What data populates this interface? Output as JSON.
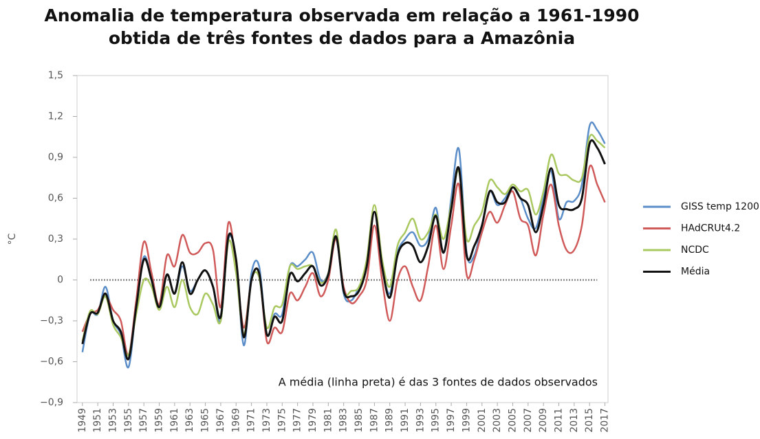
{
  "chart_data": {
    "type": "line",
    "title": "Anomalia de temperatura observada em relação a 1961-1990",
    "subtitle": "obtida de três fontes de dados para a Amazônia",
    "y_label": "°C",
    "annotation": "A média (linha preta) é das 3 fontes de dados observados",
    "x": [
      1949,
      1950,
      1951,
      1952,
      1953,
      1954,
      1955,
      1956,
      1957,
      1958,
      1959,
      1960,
      1961,
      1962,
      1963,
      1964,
      1965,
      1966,
      1967,
      1968,
      1969,
      1970,
      1971,
      1972,
      1973,
      1974,
      1975,
      1976,
      1977,
      1978,
      1979,
      1980,
      1981,
      1982,
      1983,
      1984,
      1985,
      1986,
      1987,
      1988,
      1989,
      1990,
      1991,
      1992,
      1993,
      1994,
      1995,
      1996,
      1997,
      1998,
      1999,
      2000,
      2001,
      2002,
      2003,
      2004,
      2005,
      2006,
      2007,
      2008,
      2009,
      2010,
      2011,
      2012,
      2013,
      2014,
      2015,
      2016,
      2017
    ],
    "series": [
      {
        "name": "GISS temp 1200",
        "color": "#5b8ec9",
        "values": [
          -0.53,
          -0.25,
          -0.25,
          -0.05,
          -0.3,
          -0.4,
          -0.64,
          -0.2,
          0.17,
          0.0,
          -0.2,
          0.04,
          -0.1,
          0.1,
          -0.08,
          0.0,
          0.07,
          -0.05,
          -0.3,
          0.3,
          0.15,
          -0.48,
          0.05,
          0.1,
          -0.4,
          -0.25,
          -0.25,
          0.1,
          0.1,
          0.15,
          0.2,
          0.0,
          0.05,
          0.32,
          -0.1,
          -0.15,
          -0.05,
          0.1,
          0.5,
          0.1,
          -0.1,
          0.2,
          0.3,
          0.35,
          0.25,
          0.3,
          0.53,
          0.2,
          0.6,
          0.96,
          0.2,
          0.18,
          0.4,
          0.65,
          0.55,
          0.6,
          0.68,
          0.6,
          0.45,
          0.38,
          0.6,
          0.8,
          0.45,
          0.57,
          0.58,
          0.7,
          1.13,
          1.1,
          1.0
        ]
      },
      {
        "name": "HAdCRUt4.2",
        "color": "#d05a5a",
        "values": [
          -0.38,
          -0.25,
          -0.22,
          -0.12,
          -0.22,
          -0.3,
          -0.55,
          -0.15,
          0.28,
          0.05,
          -0.18,
          0.18,
          0.1,
          0.33,
          0.2,
          0.2,
          0.27,
          0.22,
          -0.2,
          0.42,
          0.1,
          -0.35,
          0.0,
          0.05,
          -0.45,
          -0.35,
          -0.38,
          -0.1,
          -0.15,
          -0.05,
          0.05,
          -0.12,
          0.0,
          0.3,
          -0.05,
          -0.17,
          -0.12,
          0.0,
          0.4,
          0.0,
          -0.3,
          0.0,
          0.1,
          -0.05,
          -0.15,
          0.1,
          0.4,
          0.08,
          0.4,
          0.7,
          0.04,
          0.15,
          0.35,
          0.5,
          0.42,
          0.55,
          0.65,
          0.45,
          0.4,
          0.18,
          0.48,
          0.7,
          0.4,
          0.22,
          0.22,
          0.4,
          0.83,
          0.7,
          0.57
        ]
      },
      {
        "name": "NCDC",
        "color": "#a9c85f",
        "values": [
          -0.45,
          -0.23,
          -0.25,
          -0.12,
          -0.33,
          -0.42,
          -0.55,
          -0.25,
          0.0,
          -0.05,
          -0.22,
          -0.05,
          -0.2,
          0.0,
          -0.2,
          -0.25,
          -0.1,
          -0.18,
          -0.3,
          0.28,
          0.05,
          -0.4,
          0.0,
          0.02,
          -0.35,
          -0.2,
          -0.18,
          0.1,
          0.08,
          0.1,
          0.1,
          -0.02,
          0.05,
          0.37,
          -0.08,
          -0.08,
          -0.05,
          0.15,
          0.55,
          0.15,
          -0.05,
          0.25,
          0.35,
          0.45,
          0.3,
          0.35,
          0.48,
          0.3,
          0.55,
          0.8,
          0.3,
          0.4,
          0.5,
          0.73,
          0.68,
          0.63,
          0.7,
          0.65,
          0.66,
          0.48,
          0.65,
          0.92,
          0.78,
          0.77,
          0.73,
          0.75,
          1.05,
          1.02,
          0.97
        ]
      },
      {
        "name": "Média",
        "color": "#111111",
        "values": [
          -0.47,
          -0.25,
          -0.24,
          -0.1,
          -0.3,
          -0.38,
          -0.58,
          -0.2,
          0.15,
          0.0,
          -0.2,
          0.04,
          -0.1,
          0.13,
          -0.1,
          0.0,
          0.07,
          -0.05,
          -0.27,
          0.32,
          0.15,
          -0.42,
          0.0,
          0.05,
          -0.4,
          -0.27,
          -0.3,
          0.04,
          -0.01,
          0.05,
          0.1,
          -0.04,
          0.04,
          0.32,
          -0.08,
          -0.12,
          -0.08,
          0.1,
          0.5,
          0.1,
          -0.13,
          0.18,
          0.27,
          0.25,
          0.13,
          0.25,
          0.47,
          0.2,
          0.52,
          0.82,
          0.18,
          0.25,
          0.4,
          0.65,
          0.57,
          0.57,
          0.68,
          0.6,
          0.55,
          0.35,
          0.55,
          0.82,
          0.55,
          0.52,
          0.52,
          0.6,
          1.0,
          0.97,
          0.85
        ]
      }
    ],
    "zero_line": 0,
    "xlim": [
      1948.3,
      2017.4
    ],
    "xticks": [
      1949,
      1951,
      1953,
      1955,
      1957,
      1959,
      1961,
      1963,
      1965,
      1967,
      1969,
      1971,
      1973,
      1975,
      1977,
      1979,
      1981,
      1983,
      1985,
      1987,
      1989,
      1991,
      1993,
      1995,
      1997,
      1999,
      2001,
      2003,
      2005,
      2007,
      2009,
      2011,
      2013,
      2015,
      2017
    ],
    "ylim": [
      -0.9,
      1.5
    ],
    "yticks": [
      {
        "value": -0.9,
        "label": "−0,9"
      },
      {
        "value": -0.6,
        "label": "−0,6"
      },
      {
        "value": -0.3,
        "label": "−0,3"
      },
      0,
      {
        "value": 0.3,
        "label": "0,3"
      },
      {
        "value": 0.6,
        "label": "0,6"
      },
      {
        "value": 0.9,
        "label": "0,9"
      },
      {
        "value": 1.2,
        "label": "1,2"
      },
      {
        "value": 1.5,
        "label": "1,5"
      }
    ],
    "legend": "right"
  }
}
